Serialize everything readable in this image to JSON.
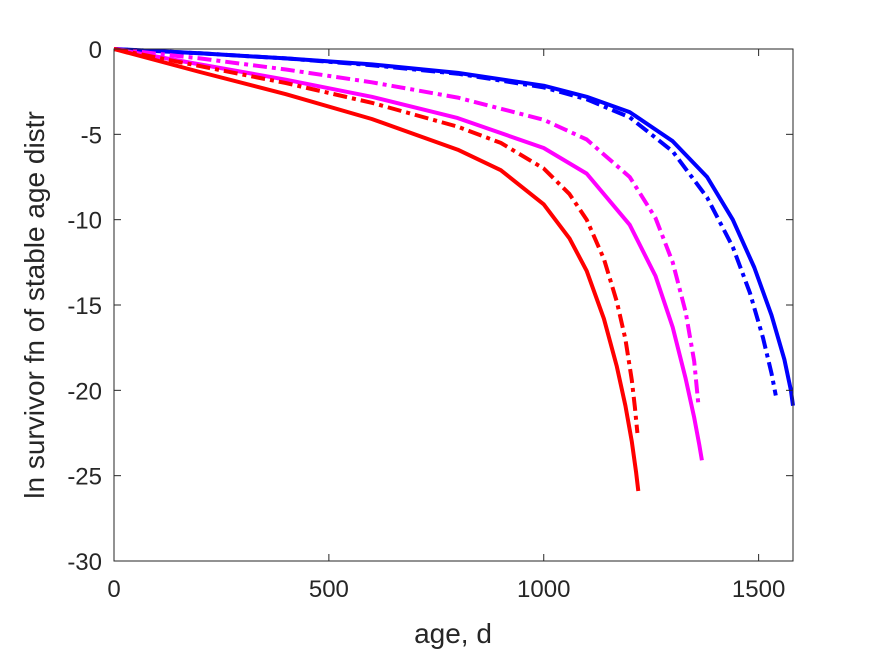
{
  "chart_data": {
    "type": "line",
    "title": "",
    "xlabel": "age, d",
    "ylabel": "ln survivor fn of stable age distr",
    "xlim": [
      0,
      1580
    ],
    "ylim": [
      -30,
      0
    ],
    "xticks": [
      0,
      500,
      1000,
      1500
    ],
    "yticks": [
      0,
      -5,
      -10,
      -15,
      -20,
      -25,
      -30
    ],
    "grid": false,
    "series": [
      {
        "color": "#0000ff",
        "style": "solid",
        "x": [
          0,
          200,
          400,
          600,
          800,
          1000,
          1100,
          1200,
          1300,
          1380,
          1440,
          1490,
          1530,
          1560,
          1575,
          1580
        ],
        "y": [
          0,
          -0.25,
          -0.55,
          -0.9,
          -1.4,
          -2.15,
          -2.8,
          -3.7,
          -5.4,
          -7.5,
          -10.0,
          -12.8,
          -15.6,
          -18.2,
          -20.0,
          -20.9
        ]
      },
      {
        "color": "#0000ff",
        "style": "dashdot",
        "x": [
          0,
          200,
          400,
          600,
          800,
          1000,
          1100,
          1200,
          1300,
          1380,
          1440,
          1480,
          1510,
          1530,
          1540
        ],
        "y": [
          0,
          -0.25,
          -0.55,
          -0.95,
          -1.45,
          -2.25,
          -2.95,
          -4.0,
          -6.0,
          -8.7,
          -11.6,
          -14.3,
          -16.9,
          -19.0,
          -20.3
        ]
      },
      {
        "color": "#ff00ff",
        "style": "solid",
        "x": [
          0,
          200,
          400,
          600,
          800,
          1000,
          1100,
          1200,
          1260,
          1300,
          1330,
          1350,
          1362,
          1368
        ],
        "y": [
          0,
          -0.9,
          -1.8,
          -2.8,
          -4.05,
          -5.8,
          -7.3,
          -10.3,
          -13.3,
          -16.3,
          -19.3,
          -21.6,
          -23.2,
          -24.1
        ]
      },
      {
        "color": "#ff00ff",
        "style": "dashdot",
        "x": [
          0,
          200,
          400,
          600,
          800,
          1000,
          1100,
          1200,
          1260,
          1300,
          1330,
          1350,
          1360
        ],
        "y": [
          0,
          -0.55,
          -1.2,
          -1.95,
          -2.85,
          -4.15,
          -5.3,
          -7.5,
          -9.9,
          -12.5,
          -15.4,
          -18.3,
          -20.9
        ]
      },
      {
        "color": "#ff0000",
        "style": "solid",
        "x": [
          0,
          200,
          400,
          600,
          800,
          900,
          1000,
          1060,
          1100,
          1140,
          1170,
          1190,
          1205,
          1215,
          1220
        ],
        "y": [
          0,
          -1.35,
          -2.65,
          -4.1,
          -5.9,
          -7.1,
          -9.1,
          -11.1,
          -13.0,
          -15.8,
          -18.6,
          -20.9,
          -23.0,
          -24.8,
          -25.9
        ]
      },
      {
        "color": "#ff0000",
        "style": "dashdot",
        "x": [
          0,
          200,
          400,
          600,
          800,
          900,
          1000,
          1060,
          1100,
          1140,
          1170,
          1190,
          1205,
          1212,
          1218
        ],
        "y": [
          0,
          -1.0,
          -2.0,
          -3.15,
          -4.55,
          -5.5,
          -7.0,
          -8.5,
          -10.0,
          -12.3,
          -14.8,
          -17.0,
          -19.4,
          -21.0,
          -22.5
        ]
      }
    ]
  }
}
